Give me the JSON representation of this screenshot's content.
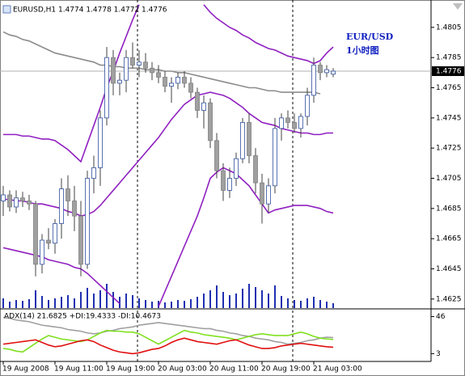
{
  "chart_data": [
    {
      "type": "candlestick",
      "title": "EURUSD,H1  1.4774 1.4778 1.4772 1.4776",
      "categories": [
        "19 Aug 2008",
        null,
        null,
        null,
        null,
        null,
        null,
        null,
        "19 Aug 11:00",
        null,
        null,
        null,
        null,
        null,
        null,
        null,
        "19 Aug 19:00",
        null,
        null,
        null,
        null,
        null,
        null,
        null,
        "20 Aug 03:00",
        null,
        null,
        null,
        null,
        null,
        null,
        null,
        "20 Aug 11:00",
        null,
        null,
        null,
        null,
        null,
        null,
        null,
        "20 Aug 19:00",
        null,
        null,
        null,
        null,
        null,
        null,
        null,
        "21 Aug 03:00",
        null,
        null,
        null
      ],
      "open": [
        1.469,
        1.4694,
        1.4686,
        1.4692,
        1.469,
        1.4688,
        1.4648,
        1.4664,
        1.4662,
        1.4675,
        1.4698,
        1.469,
        1.468,
        1.4648,
        1.4705,
        1.4712,
        1.4745,
        1.4785,
        1.4768,
        1.477,
        1.4785,
        1.478,
        1.4782,
        1.4778,
        1.4775,
        1.4772,
        1.4766,
        1.4768,
        1.4772,
        1.4768,
        1.4762,
        1.475,
        1.4755,
        1.473,
        1.471,
        1.4697,
        1.4705,
        1.4718,
        1.4742,
        1.472,
        1.4702,
        1.4688,
        1.47,
        1.4738,
        1.4745,
        1.4742,
        1.4738,
        1.4746,
        1.476,
        1.478,
        1.4775,
        1.4774
      ],
      "high": [
        1.47,
        1.4697,
        1.4697,
        1.4696,
        1.4694,
        1.469,
        1.4668,
        1.4672,
        1.4678,
        1.4705,
        1.4707,
        1.47,
        1.469,
        1.471,
        1.472,
        1.475,
        1.4792,
        1.479,
        1.4775,
        1.479,
        1.4795,
        1.479,
        1.4788,
        1.4782,
        1.478,
        1.4776,
        1.4772,
        1.4775,
        1.4776,
        1.4772,
        1.4765,
        1.476,
        1.4758,
        1.4735,
        1.4715,
        1.4712,
        1.4722,
        1.4745,
        1.4748,
        1.4725,
        1.4708,
        1.4705,
        1.4745,
        1.4748,
        1.475,
        1.4748,
        1.4748,
        1.4765,
        1.4785,
        1.4782,
        1.478,
        1.4778
      ],
      "low": [
        1.468,
        1.4683,
        1.4682,
        1.4686,
        1.4684,
        1.464,
        1.4642,
        1.4658,
        1.4655,
        1.4665,
        1.468,
        1.467,
        1.464,
        1.4645,
        1.4695,
        1.47,
        1.474,
        1.476,
        1.476,
        1.4762,
        1.4778,
        1.4772,
        1.4775,
        1.477,
        1.4768,
        1.4762,
        1.4755,
        1.4764,
        1.4765,
        1.4758,
        1.4745,
        1.4738,
        1.4725,
        1.4705,
        1.469,
        1.4692,
        1.47,
        1.4715,
        1.4715,
        1.4695,
        1.4675,
        1.4682,
        1.4695,
        1.473,
        1.4738,
        1.4735,
        1.4732,
        1.474,
        1.4755,
        1.477,
        1.4772,
        1.4772
      ],
      "close": [
        1.4694,
        1.4686,
        1.4692,
        1.469,
        1.4688,
        1.4648,
        1.4664,
        1.4662,
        1.4675,
        1.4698,
        1.469,
        1.468,
        1.4648,
        1.4705,
        1.4712,
        1.4745,
        1.4785,
        1.4768,
        1.477,
        1.4785,
        1.478,
        1.4782,
        1.4778,
        1.4775,
        1.4772,
        1.4766,
        1.4768,
        1.4772,
        1.4768,
        1.4762,
        1.475,
        1.4755,
        1.473,
        1.471,
        1.4697,
        1.4705,
        1.4718,
        1.4742,
        1.472,
        1.4702,
        1.4688,
        1.47,
        1.4738,
        1.4745,
        1.4742,
        1.4738,
        1.4746,
        1.476,
        1.478,
        1.4775,
        1.4777,
        1.4776
      ],
      "bull_color": "#ffffff",
      "bear_color": "#a0a0a0",
      "outline_color": "#3050a0",
      "overlays": [
        {
          "color": "#8c8c8c",
          "values": [
            1.4802,
            1.48,
            1.4799,
            1.4797,
            1.4796,
            1.4794,
            1.4792,
            1.479,
            1.4788,
            1.4787,
            1.4786,
            1.4785,
            1.4784,
            1.4783,
            1.4782,
            1.478,
            1.478,
            1.4779,
            1.4779,
            1.4778,
            1.4778,
            1.4778,
            1.4777,
            1.4777,
            1.4777,
            1.4776,
            1.4776,
            1.4775,
            1.4775,
            1.4774,
            1.4773,
            1.4772,
            1.4771,
            1.477,
            1.4769,
            1.4768,
            1.4767,
            1.4766,
            1.4765,
            1.4765,
            1.4764,
            1.4763,
            1.4763,
            1.4762,
            1.4762,
            1.4762,
            1.4762,
            1.4762,
            1.4762,
            1.4761,
            null,
            null
          ]
        },
        {
          "color": "#9020c0",
          "values": [
            1.4691,
            1.4691,
            1.469,
            1.469,
            1.4689,
            1.4688,
            1.4688,
            1.4687,
            1.4686,
            1.4685,
            1.4683,
            1.4682,
            1.468,
            1.4681,
            1.4683,
            1.4687,
            1.4692,
            1.4697,
            1.4702,
            1.4707,
            1.4712,
            1.4717,
            1.4722,
            1.4727,
            1.4732,
            1.4738,
            1.4744,
            1.4749,
            1.4754,
            1.4757,
            1.476,
            1.4761,
            1.4762,
            1.4761,
            1.476,
            1.4758,
            1.4755,
            1.4752,
            1.4748,
            1.4745,
            1.4742,
            1.4741,
            1.474,
            1.4738,
            1.4737,
            1.4736,
            1.4735,
            1.4735,
            1.4734,
            1.4734,
            1.4735,
            1.4735
          ]
        },
        {
          "color": "#9020c0",
          "values": [
            1.4734,
            1.4734,
            1.4734,
            1.4733,
            1.4733,
            1.4732,
            1.4731,
            1.4731,
            1.473,
            1.4727,
            1.4724,
            1.472,
            1.4716,
            1.4728,
            1.474,
            1.4752,
            1.4765,
            1.4776,
            1.4788,
            1.4799,
            1.481,
            1.482,
            null,
            null,
            null,
            null,
            null,
            null,
            null,
            null,
            null,
            1.482,
            1.4815,
            1.4811,
            1.4808,
            1.4805,
            1.4803,
            1.48,
            1.4798,
            1.4795,
            1.4793,
            1.4791,
            1.479,
            1.4788,
            1.4786,
            1.4785,
            1.4784,
            1.4783,
            1.4781,
            1.4783,
            1.4788,
            1.4792
          ]
        },
        {
          "color": "#9020c0",
          "values": [
            1.4659,
            1.4658,
            1.4657,
            1.4656,
            1.4655,
            1.4654,
            1.4653,
            1.4651,
            1.465,
            1.4649,
            1.4648,
            1.4646,
            1.4645,
            1.4642,
            1.4638,
            1.4634,
            1.463,
            1.4626,
            1.4622,
            null,
            null,
            null,
            null,
            null,
            1.462,
            1.463,
            1.464,
            1.465,
            1.466,
            1.467,
            1.468,
            1.4692,
            1.4705,
            1.4709,
            1.4712,
            1.471,
            1.4708,
            1.4704,
            1.47,
            1.4694,
            1.4688,
            1.4682,
            1.4684,
            1.4685,
            1.4686,
            1.4687,
            1.4687,
            1.4687,
            1.4686,
            1.4685,
            1.4683,
            1.4682
          ]
        }
      ],
      "volume": [
        12,
        8,
        10,
        9,
        11,
        22,
        15,
        10,
        12,
        14,
        16,
        12,
        20,
        25,
        18,
        22,
        30,
        20,
        14,
        18,
        16,
        12,
        10,
        8,
        9,
        7,
        8,
        10,
        9,
        11,
        14,
        18,
        22,
        28,
        20,
        16,
        18,
        24,
        30,
        26,
        22,
        18,
        28,
        15,
        12,
        10,
        9,
        12,
        14,
        10,
        8,
        6
      ],
      "volume_lim": [
        0,
        40
      ],
      "volume_color": "#1f2fb0",
      "ylim": [
        1.4619,
        1.4821
      ],
      "yticks": [
        1.4805,
        1.4785,
        1.4765,
        1.4745,
        1.4725,
        1.4705,
        1.4685,
        1.4665,
        1.4645,
        1.4625
      ],
      "last_price": 1.4776,
      "annotations": [
        "EUR/USD",
        "1小时图"
      ]
    },
    {
      "type": "line",
      "title": "ADX(14) 21.6825 +DI:19.4333 -DI:10.4673",
      "series": [
        {
          "color": "#a0a0a0",
          "values": [
            45,
            44,
            42,
            41,
            40,
            38,
            36,
            35,
            34,
            33,
            31,
            30,
            29,
            27,
            26,
            27,
            29,
            30,
            32,
            33,
            34,
            36,
            37,
            38,
            39,
            38,
            37,
            36,
            35,
            34,
            33,
            32,
            32,
            30,
            29,
            27,
            26,
            24,
            23,
            21,
            20,
            19,
            17,
            16,
            14,
            15,
            16,
            18,
            19,
            21,
            22,
            21.68
          ]
        },
        {
          "color": "#80e020",
          "values": [
            9,
            8,
            6,
            5,
            10,
            15,
            20,
            24,
            22,
            20,
            19,
            18,
            17,
            19,
            23,
            27,
            30,
            29,
            29,
            28,
            28,
            26,
            22,
            18,
            14,
            18,
            22,
            26,
            30,
            28,
            27,
            25,
            24,
            23,
            22,
            21,
            19,
            21,
            23,
            25,
            26,
            25,
            24,
            24,
            24,
            26,
            28,
            26,
            23,
            21,
            20,
            19.43
          ]
        },
        {
          "color": "#e01010",
          "values": [
            14,
            15,
            16,
            17,
            18,
            19,
            16,
            13,
            11,
            12,
            14,
            16,
            18,
            19,
            17,
            13,
            10,
            7,
            5,
            4,
            3,
            4,
            6,
            8,
            9,
            12,
            16,
            19,
            21,
            19,
            17,
            16,
            15,
            14,
            16,
            18,
            19,
            16,
            13,
            11,
            9,
            9,
            10,
            12,
            13,
            14,
            15,
            14,
            13,
            12,
            11,
            10.47
          ]
        }
      ],
      "ylim": [
        -6,
        53
      ],
      "yticks": [
        46,
        3
      ]
    }
  ]
}
